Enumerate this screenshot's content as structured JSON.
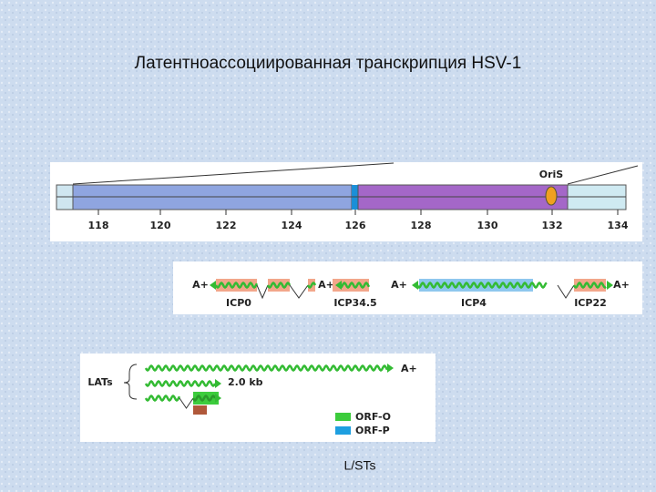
{
  "title": "Латентноассоциированная транскрипция HSV-1",
  "genome_map": {
    "origin_label": "OriS",
    "ticks": [
      118,
      120,
      122,
      124,
      126,
      128,
      130,
      132,
      134
    ]
  },
  "lytic_genes": {
    "poly_a": [
      "A+",
      "A+",
      "A+",
      "A+"
    ],
    "labels": [
      "ICP0",
      "ICP34.5",
      "ICP4",
      "ICP22"
    ]
  },
  "lats": {
    "label": "LATs",
    "poly_a": "A+",
    "size_label": "2.0 kb",
    "legend": [
      "ORF-O",
      "ORF-P"
    ]
  },
  "caption": "L/STs"
}
